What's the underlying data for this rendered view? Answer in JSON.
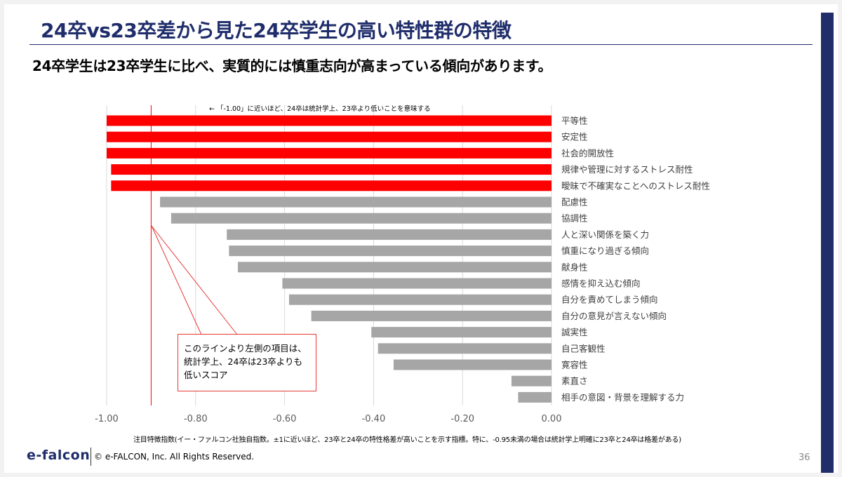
{
  "title": "24卒vs23卒差から見た24卒学生の高い特性群の特徴",
  "subtitle": "24卒学生は23卒学生に比べ、実質的には慎重志向が高まっている傾向があります。",
  "chart_annotation": "← 「-1.00」に近いほど、24卒は統計学上、23卒より低いことを意味する",
  "note_box": {
    "line1": "このラインより左側の項目は、",
    "line2": "統計学上、24卒は23卒よりも",
    "line3": "低いスコア"
  },
  "footnote": "注目特徴指数(イー・ファルコン社独自指数。±1に近いほど、23卒と24卒の特性格差が高いことを示す指標。特に、-0.95未満の場合は統計学上明確に23卒と24卒は格差がある)",
  "brand": "e-falcon",
  "copyright": "© e-FALCON, Inc. All Rights Reserved.",
  "page_number": "36",
  "colors": {
    "highlight": "#ff0000",
    "normal": "#a6a6a6",
    "accent": "#1f2d6b",
    "threshold_line": "#ff0000"
  },
  "chart_data": {
    "type": "bar",
    "orientation": "horizontal",
    "categories": [
      "平等性",
      "安定性",
      "社会的開放性",
      "規律や管理に対するストレス耐性",
      "曖昧で不確実なことへのストレス耐性",
      "配慮性",
      "協調性",
      "人と深い関係を築く力",
      "慎重になり過ぎる傾向",
      "献身性",
      "感情を抑え込む傾向",
      "自分を責めてしまう傾向",
      "自分の意見が言えない傾向",
      "誠実性",
      "自己客観性",
      "寛容性",
      "素直さ",
      "相手の意図・背景を理解する力"
    ],
    "values": [
      -1.0,
      -1.0,
      -1.0,
      -0.99,
      -0.99,
      -0.88,
      -0.855,
      -0.73,
      -0.725,
      -0.705,
      -0.605,
      -0.59,
      -0.54,
      -0.405,
      -0.39,
      -0.355,
      -0.09,
      -0.075
    ],
    "highlighted": [
      true,
      true,
      true,
      true,
      true,
      false,
      false,
      false,
      false,
      false,
      false,
      false,
      false,
      false,
      false,
      false,
      false,
      false
    ],
    "xlim": [
      -1.0,
      0.0
    ],
    "xticks": [
      "-1.00",
      "-0.80",
      "-0.60",
      "-0.40",
      "-0.20",
      "0.00"
    ],
    "threshold": -0.9,
    "grid": "vertical"
  }
}
